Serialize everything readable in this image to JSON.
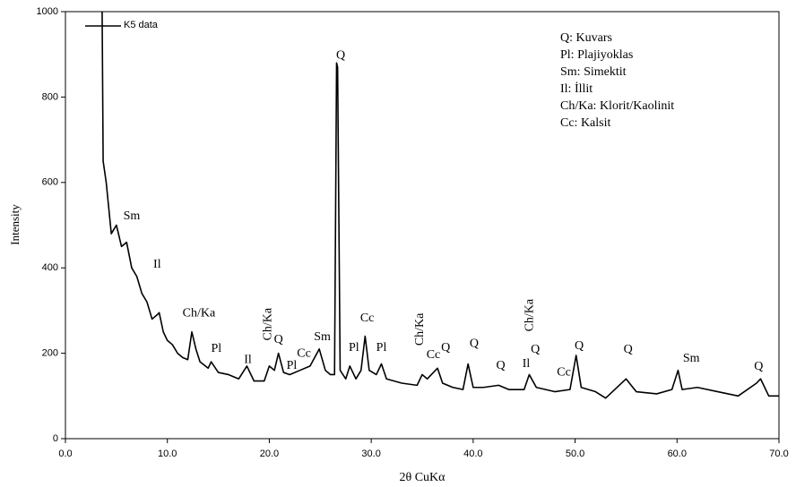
{
  "chart_data": {
    "type": "line",
    "y_label": "Intensity",
    "x_label": "2θ CuKα",
    "xlim": [
      0,
      70
    ],
    "ylim": [
      0,
      1000
    ],
    "xticks": [
      {
        "value": 0,
        "label": "0.0"
      },
      {
        "value": 10,
        "label": "10.0"
      },
      {
        "value": 20,
        "label": "20.0"
      },
      {
        "value": 30,
        "label": "30.0"
      },
      {
        "value": 40,
        "label": "40.0"
      },
      {
        "value": 50,
        "label": "50.0"
      },
      {
        "value": 60,
        "label": "60.0"
      },
      {
        "value": 70,
        "label": "70.0"
      }
    ],
    "yticks": [
      0,
      200,
      400,
      600,
      800,
      1000
    ],
    "legend_notes": [
      "Q: Kuvars",
      "Pl: Plajiyoklas",
      "Sm: Simektit",
      "Il: İllit",
      "Ch/Ka: Klorit/Kaolinit",
      "Cc: Kalsit"
    ],
    "x": [
      3.6,
      3.7,
      4.0,
      4.5,
      5.0,
      5.5,
      6.0,
      6.5,
      7.0,
      7.5,
      8.0,
      8.5,
      9.0,
      9.2,
      9.6,
      10.0,
      10.5,
      11.0,
      11.5,
      12.0,
      12.4,
      12.8,
      13.2,
      14.0,
      14.3,
      15.0,
      16.0,
      17.0,
      17.8,
      18.5,
      19.5,
      20.0,
      20.5,
      20.9,
      21.4,
      22.0,
      23.0,
      24.0,
      24.9,
      25.5,
      26.0,
      26.4,
      26.6,
      26.7,
      26.95,
      27.5,
      27.9,
      28.5,
      29.0,
      29.4,
      29.8,
      30.5,
      31.0,
      31.5,
      33.0,
      34.5,
      35.0,
      35.5,
      36.5,
      37.0,
      38.0,
      39.0,
      39.5,
      40.0,
      41.0,
      42.5,
      43.5,
      45.0,
      45.5,
      46.2,
      48.0,
      49.5,
      50.1,
      50.6,
      52.0,
      53.0,
      55.0,
      56.0,
      58.0,
      59.5,
      60.1,
      60.5,
      62.0,
      64.0,
      66.0,
      67.8,
      68.2,
      69.0,
      70.0
    ],
    "series": [
      {
        "name": "K5 data",
        "color": "#000000",
        "values": [
          1000,
          650,
          600,
          480,
          500,
          450,
          460,
          400,
          380,
          340,
          320,
          280,
          290,
          295,
          250,
          230,
          220,
          200,
          190,
          185,
          250,
          210,
          180,
          165,
          180,
          155,
          150,
          140,
          170,
          135,
          135,
          170,
          160,
          200,
          155,
          150,
          160,
          170,
          210,
          160,
          150,
          150,
          880,
          870,
          160,
          140,
          170,
          140,
          160,
          240,
          160,
          150,
          175,
          140,
          130,
          125,
          150,
          140,
          165,
          130,
          120,
          115,
          175,
          120,
          120,
          125,
          115,
          115,
          150,
          120,
          110,
          115,
          195,
          120,
          110,
          95,
          140,
          110,
          105,
          115,
          160,
          115,
          120,
          110,
          100,
          130,
          140,
          100,
          100
        ]
      }
    ],
    "annotations": [
      {
        "text": "Sm",
        "x": 6.5,
        "y": 520
      },
      {
        "text": "Il",
        "x": 9.0,
        "y": 407
      },
      {
        "text": "Ch/Ka",
        "x": 13.1,
        "y": 293
      },
      {
        "text": "Pl",
        "x": 14.8,
        "y": 210
      },
      {
        "text": "Il",
        "x": 17.9,
        "y": 184
      },
      {
        "text": "Ch/Ka",
        "x": 19.9,
        "y": 268,
        "vertical": true
      },
      {
        "text": "Q",
        "x": 20.9,
        "y": 231
      },
      {
        "text": "Pl",
        "x": 22.2,
        "y": 170
      },
      {
        "text": "Cc",
        "x": 23.4,
        "y": 199
      },
      {
        "text": "Sm",
        "x": 25.2,
        "y": 237
      },
      {
        "text": "Q",
        "x": 27.0,
        "y": 897
      },
      {
        "text": "Pl",
        "x": 28.3,
        "y": 212
      },
      {
        "text": "Cc",
        "x": 29.6,
        "y": 281
      },
      {
        "text": "Pl",
        "x": 31.0,
        "y": 212
      },
      {
        "text": "Ch/Ka",
        "x": 34.8,
        "y": 256,
        "vertical": true
      },
      {
        "text": "Cc",
        "x": 36.1,
        "y": 195
      },
      {
        "text": "Q",
        "x": 37.3,
        "y": 212
      },
      {
        "text": "Q",
        "x": 40.1,
        "y": 222
      },
      {
        "text": "Q",
        "x": 42.7,
        "y": 170
      },
      {
        "text": "Il",
        "x": 45.2,
        "y": 174
      },
      {
        "text": "Ch/Ka",
        "x": 45.6,
        "y": 289,
        "vertical": true
      },
      {
        "text": "Q",
        "x": 46.1,
        "y": 208
      },
      {
        "text": "Cc",
        "x": 48.9,
        "y": 155
      },
      {
        "text": "Q",
        "x": 50.4,
        "y": 216
      },
      {
        "text": "Q",
        "x": 55.2,
        "y": 208
      },
      {
        "text": "Sm",
        "x": 61.4,
        "y": 187
      },
      {
        "text": "Q",
        "x": 68.0,
        "y": 168
      }
    ]
  }
}
